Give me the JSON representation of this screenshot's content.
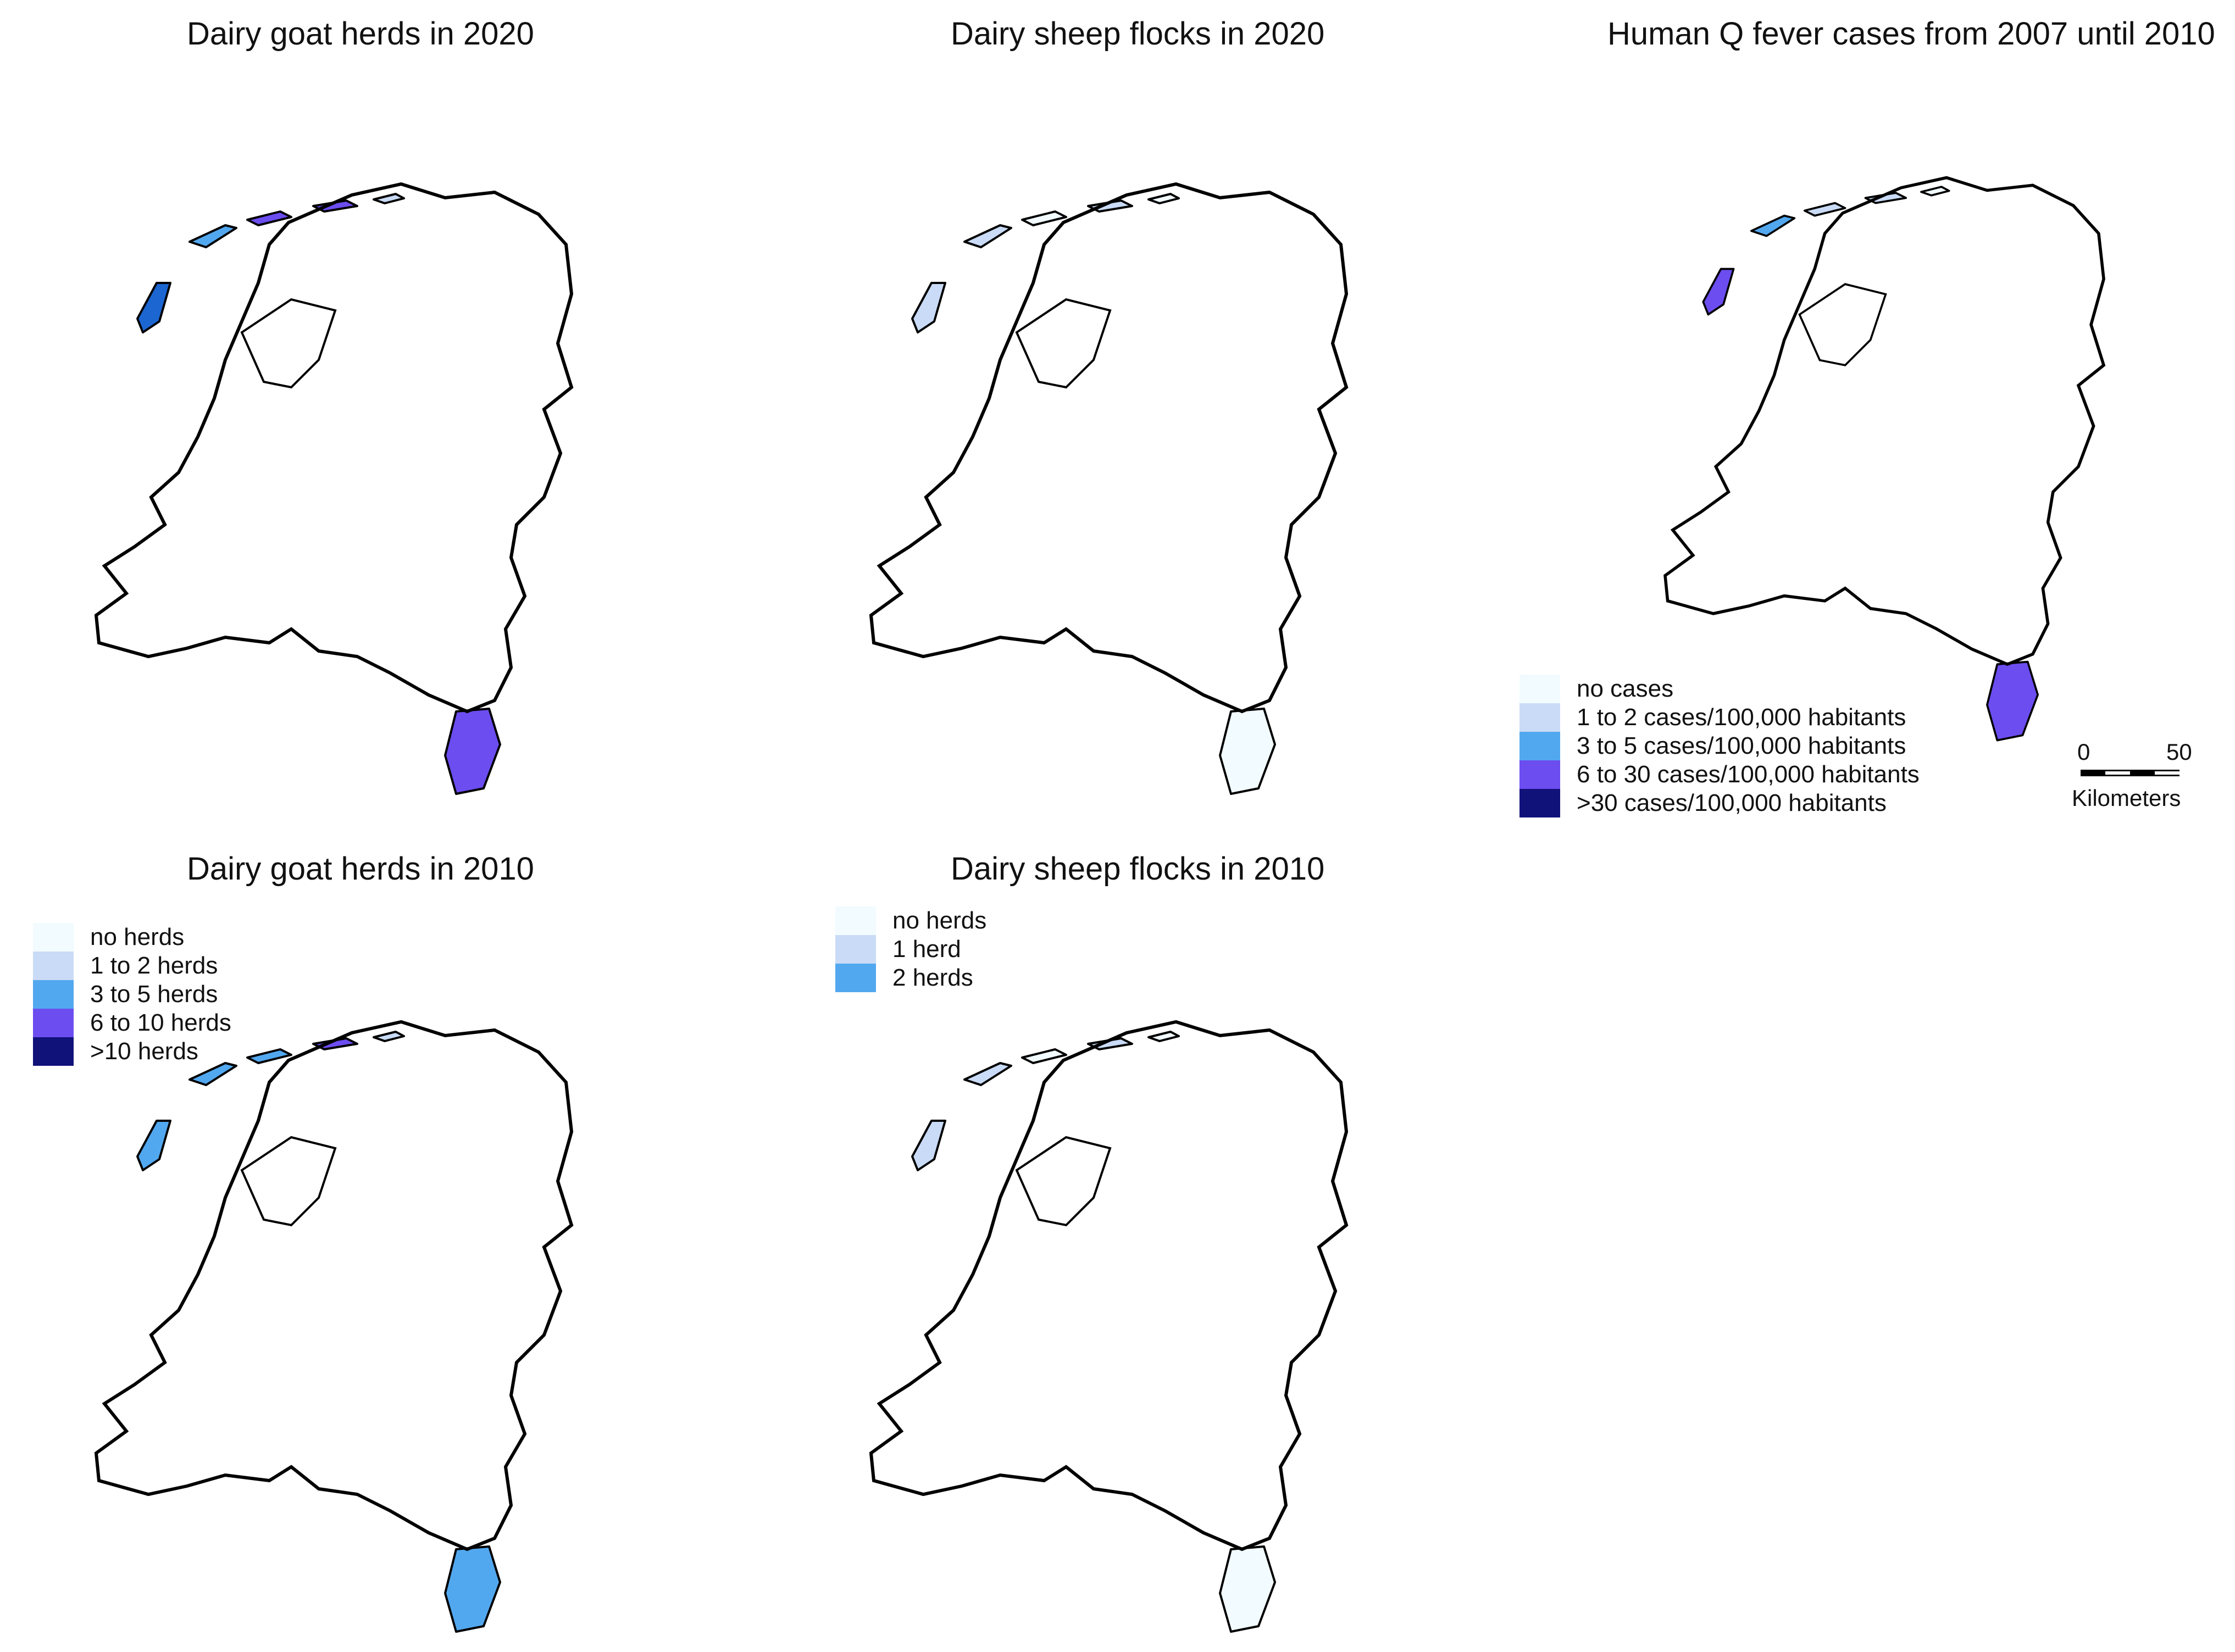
{
  "panels": [
    {
      "title": "Dairy goat herds in 2020",
      "scale": "goat",
      "regions": [
        "#1b66d1",
        "#52a8ef",
        "#6c4df0",
        "#6c4df0",
        "#c9dbf6",
        "#6c4df0",
        "#52a8ef",
        "#6c4df0",
        "#52a8ef",
        "#6c4df0",
        "#52a8ef",
        "#6c4df0",
        "#11117a",
        "#c9dbf6",
        "#1b1b80",
        "#6c4df0",
        "#11117a",
        "#52a8ef",
        "#6c4df0",
        "#52a8ef",
        "#11117a",
        "#52a8ef",
        "#6c4df0",
        "#6c4df0",
        "#6c4df0",
        "#52a8ef",
        "#6c4df0",
        "#c9dbf6",
        "#52a8ef",
        "#6c4df0",
        "#11117a",
        "#6c4df0",
        "#6c4df0",
        "#52a8ef",
        "#52a8ef",
        "#c9dbf6",
        "#11117a",
        "#6c4df0",
        "#6c4df0",
        "#c9dbf6",
        "#11117a",
        "#6c4df0",
        "#6c4df0",
        "#c9dbf6",
        "#52a8ef",
        "#6c4df0",
        "#6c4df0",
        "#c9dbf6",
        "#52a8ef",
        "#c9dbf6",
        "#6c4df0",
        "#52a8ef",
        "#c9dbf6",
        "#52a8ef",
        "#f2fbff",
        "#52a8ef",
        "#6c4df0",
        "#11117a",
        "#52a8ef",
        "#6c4df0",
        "#c9dbf6",
        "#52a8ef",
        "#6c4df0",
        "#c9dbf6",
        "#52a8ef",
        "#c9dbf6",
        "#c9dbf6",
        "#6c4df0",
        "#c9dbf6",
        "#c9dbf6",
        "#52a8ef",
        "#52a8ef",
        "#6c4df0",
        "#c9dbf6",
        "#52a8ef",
        "#6c4df0",
        "#c9dbf6",
        "#6c4df0",
        "#52a8ef",
        "#52a8ef",
        "#52a8ef",
        "#52a8ef",
        "#6c4df0",
        "#c9dbf6",
        "#c9dbf6",
        "#52a8ef",
        "#c9dbf6",
        "#52a8ef",
        "#c9dbf6",
        "#c9dbf6",
        "#c9dbf6",
        "#c9dbf6",
        "#c9dbf6",
        "#52a8ef",
        "#11117a",
        "#52a8ef",
        "#6c4df0",
        "#c9dbf6",
        "#52a8ef",
        "#c9dbf6",
        "#52a8ef",
        "#6c4df0",
        "#c9dbf6",
        "#52a8ef",
        "#6c4df0",
        "#c9dbf6",
        "#52a8ef",
        "#6c4df0",
        "#c9dbf6",
        "#6c4df0",
        "#c9dbf6",
        "#52a8ef",
        "#c9dbf6",
        "#52a8ef",
        "#6c4df0",
        "#c9dbf6",
        "#52a8ef",
        "#c9dbf6",
        "#52a8ef",
        "#c9dbf6",
        "#c9dbf6",
        "#52a8ef",
        "#c9dbf6",
        "#52a8ef",
        "#c9dbf6",
        "#52a8ef",
        "#c9dbf6",
        "#6c4df0",
        "#c9dbf6",
        "#52a8ef",
        "#52a8ef",
        "#c9dbf6",
        "#f2fbff",
        "#52a8ef",
        "#52a8ef",
        "#c9dbf6",
        "#52a8ef",
        "#6c4df0",
        "#52a8ef",
        "#c9dbf6",
        "#52a8ef",
        "#c9dbf6",
        "#52a8ef",
        "#52a8ef",
        "#52a8ef",
        "#c9dbf6",
        "#52a8ef",
        "#c9dbf6"
      ]
    },
    {
      "title": "Dairy sheep flocks in 2020",
      "scale": "sheep",
      "regions": [
        "#c9dbf6",
        "#c9dbf6",
        "#f2fbff",
        "#c9dbf6",
        "#f2fbff",
        "#f2fbff",
        "#f2fbff",
        "#f2fbff",
        "#c9dbf6",
        "#f2fbff",
        "#f2fbff",
        "#f2fbff",
        "#f2fbff",
        "#c9dbf6",
        "#f2fbff",
        "#f2fbff",
        "#f2fbff",
        "#f2fbff",
        "#c9dbf6",
        "#f2fbff",
        "#f2fbff",
        "#f2fbff",
        "#c9dbf6",
        "#f2fbff",
        "#f2fbff",
        "#f2fbff",
        "#c9dbf6",
        "#f2fbff",
        "#f2fbff",
        "#c9dbf6",
        "#f2fbff",
        "#f2fbff",
        "#f2fbff",
        "#f2fbff",
        "#f2fbff",
        "#c9dbf6",
        "#f2fbff",
        "#f2fbff",
        "#f2fbff",
        "#c9dbf6",
        "#f2fbff",
        "#f2fbff",
        "#f2fbff",
        "#c9dbf6",
        "#f2fbff",
        "#f2fbff",
        "#f2fbff",
        "#c9dbf6",
        "#f2fbff",
        "#f2fbff",
        "#f2fbff",
        "#f2fbff",
        "#c9dbf6",
        "#f2fbff",
        "#f2fbff",
        "#f2fbff",
        "#f2fbff",
        "#f2fbff",
        "#f2fbff",
        "#f2fbff",
        "#c9dbf6",
        "#f2fbff",
        "#f2fbff",
        "#f2fbff",
        "#c9dbf6",
        "#f2fbff",
        "#c9dbf6",
        "#f2fbff",
        "#f2fbff",
        "#c9dbf6",
        "#f2fbff",
        "#f2fbff",
        "#f2fbff",
        "#c9dbf6",
        "#f2fbff",
        "#f2fbff",
        "#c9dbf6",
        "#f2fbff",
        "#f2fbff",
        "#f2fbff",
        "#f2fbff",
        "#f2fbff",
        "#52a8ef",
        "#c9dbf6",
        "#c9dbf6",
        "#f2fbff",
        "#c9dbf6",
        "#f2fbff",
        "#c9dbf6",
        "#c9dbf6",
        "#c9dbf6",
        "#f2fbff",
        "#c9dbf6",
        "#52a8ef",
        "#f2fbff",
        "#f2fbff",
        "#c9dbf6",
        "#f2fbff",
        "#f2fbff",
        "#c9dbf6",
        "#f2fbff",
        "#c9dbf6",
        "#c9dbf6",
        "#f2fbff",
        "#f2fbff",
        "#c9dbf6",
        "#f2fbff",
        "#f2fbff",
        "#c9dbf6",
        "#f2fbff",
        "#c9dbf6",
        "#f2fbff",
        "#f2fbff",
        "#c9dbf6",
        "#f2fbff",
        "#c9dbf6",
        "#f2fbff",
        "#f2fbff",
        "#c9dbf6",
        "#c9dbf6",
        "#f2fbff",
        "#c9dbf6",
        "#c9dbf6",
        "#f2fbff",
        "#c9dbf6",
        "#f2fbff",
        "#c9dbf6",
        "#c9dbf6",
        "#f2fbff",
        "#f2fbff",
        "#f2fbff",
        "#c9dbf6",
        "#f2fbff",
        "#f2fbff",
        "#c9dbf6",
        "#f2fbff",
        "#c9dbf6",
        "#f2fbff",
        "#f2fbff",
        "#c9dbf6",
        "#f2fbff",
        "#f2fbff",
        "#f2fbff",
        "#c9dbf6",
        "#f2fbff",
        "#c9dbf6",
        "#f2fbff",
        "#f2fbff"
      ]
    },
    {
      "title": "Human Q fever cases from 2007 until 2010",
      "scale": "qfever",
      "regions": [
        "#6c4df0",
        "#52a8ef",
        "#c9dbf6",
        "#c9dbf6",
        "#f2fbff",
        "#6c4df0",
        "#f2fbff",
        "#52a8ef",
        "#c9dbf6",
        "#52a8ef",
        "#c9dbf6",
        "#52a8ef",
        "#52a8ef",
        "#c9dbf6",
        "#6c4df0",
        "#52a8ef",
        "#c9dbf6",
        "#c9dbf6",
        "#6c4df0",
        "#c9dbf6",
        "#52a8ef",
        "#c9dbf6",
        "#52a8ef",
        "#c9dbf6",
        "#6c4df0",
        "#11117a",
        "#11117a",
        "#c9dbf6",
        "#11117a",
        "#6c4df0",
        "#11117a",
        "#11117a",
        "#6c4df0",
        "#11117a",
        "#c9dbf6",
        "#52a8ef",
        "#11117a",
        "#6c4df0",
        "#11117a",
        "#c9dbf6",
        "#11117a",
        "#11117a",
        "#11117a",
        "#6c4df0",
        "#52a8ef",
        "#6c4df0",
        "#11117a",
        "#c9dbf6",
        "#52a8ef",
        "#6c4df0",
        "#c9dbf6",
        "#c9dbf6",
        "#6c4df0",
        "#52a8ef",
        "#f2fbff",
        "#52a8ef",
        "#c9dbf6",
        "#6c4df0",
        "#52a8ef",
        "#c9dbf6",
        "#f2fbff",
        "#52a8ef",
        "#c9dbf6",
        "#c9dbf6",
        "#52a8ef",
        "#c9dbf6",
        "#52a8ef",
        "#c9dbf6",
        "#f2fbff",
        "#c9dbf6",
        "#52a8ef",
        "#c9dbf6",
        "#c9dbf6",
        "#f2fbff",
        "#52a8ef",
        "#c9dbf6",
        "#c9dbf6",
        "#c9dbf6",
        "#52a8ef",
        "#c9dbf6",
        "#c9dbf6",
        "#c9dbf6",
        "#52a8ef",
        "#c9dbf6",
        "#f2fbff",
        "#52a8ef",
        "#c9dbf6",
        "#c9dbf6",
        "#c9dbf6",
        "#f2fbff",
        "#c9dbf6",
        "#c9dbf6",
        "#c9dbf6",
        "#52a8ef",
        "#6c4df0",
        "#52a8ef",
        "#11117a",
        "#c9dbf6",
        "#52a8ef",
        "#c9dbf6",
        "#6c4df0",
        "#c9dbf6",
        "#c9dbf6",
        "#c9dbf6",
        "#52a8ef",
        "#c9dbf6",
        "#52a8ef",
        "#c9dbf6",
        "#c9dbf6",
        "#52a8ef",
        "#c9dbf6",
        "#c9dbf6",
        "#52a8ef",
        "#c9dbf6",
        "#c9dbf6",
        "#c9dbf6",
        "#52a8ef",
        "#c9dbf6",
        "#c9dbf6",
        "#c9dbf6",
        "#52a8ef",
        "#c9dbf6",
        "#c9dbf6",
        "#52a8ef",
        "#c9dbf6",
        "#c9dbf6",
        "#c9dbf6",
        "#c9dbf6",
        "#c9dbf6",
        "#52a8ef",
        "#c9dbf6",
        "#c9dbf6",
        "#f2fbff",
        "#52a8ef",
        "#c9dbf6",
        "#c9dbf6",
        "#c9dbf6",
        "#52a8ef",
        "#c9dbf6",
        "#c9dbf6",
        "#c9dbf6",
        "#52a8ef",
        "#c9dbf6",
        "#c9dbf6",
        "#c9dbf6",
        "#c9dbf6",
        "#52a8ef",
        "#c9dbf6",
        "#c9dbf6"
      ]
    },
    {
      "title": "Dairy goat herds in 2010",
      "scale": "goat",
      "regions": [
        "#52a8ef",
        "#52a8ef",
        "#52a8ef",
        "#6c4df0",
        "#c9dbf6",
        "#52a8ef",
        "#6c4df0",
        "#52a8ef",
        "#52a8ef",
        "#6c4df0",
        "#52a8ef",
        "#52a8ef",
        "#11117a",
        "#c9dbf6",
        "#52a8ef",
        "#6c4df0",
        "#11117a",
        "#52a8ef",
        "#6c4df0",
        "#52a8ef",
        "#11117a",
        "#52a8ef",
        "#6c4df0",
        "#6c4df0",
        "#6c4df0",
        "#52a8ef",
        "#6c4df0",
        "#c9dbf6",
        "#52a8ef",
        "#6c4df0",
        "#11117a",
        "#6c4df0",
        "#6c4df0",
        "#52a8ef",
        "#52a8ef",
        "#c9dbf6",
        "#11117a",
        "#6c4df0",
        "#6c4df0",
        "#c9dbf6",
        "#11117a",
        "#6c4df0",
        "#6c4df0",
        "#c9dbf6",
        "#52a8ef",
        "#6c4df0",
        "#52a8ef",
        "#c9dbf6",
        "#52a8ef",
        "#c9dbf6",
        "#6c4df0",
        "#52a8ef",
        "#c9dbf6",
        "#52a8ef",
        "#f2fbff",
        "#52a8ef",
        "#6c4df0",
        "#6c4df0",
        "#52a8ef",
        "#6c4df0",
        "#c9dbf6",
        "#52a8ef",
        "#6c4df0",
        "#c9dbf6",
        "#52a8ef",
        "#c9dbf6",
        "#c9dbf6",
        "#6c4df0",
        "#c9dbf6",
        "#c9dbf6",
        "#52a8ef",
        "#52a8ef",
        "#6c4df0",
        "#c9dbf6",
        "#52a8ef",
        "#52a8ef",
        "#c9dbf6",
        "#6c4df0",
        "#52a8ef",
        "#52a8ef",
        "#52a8ef",
        "#52a8ef",
        "#52a8ef",
        "#c9dbf6",
        "#c9dbf6",
        "#52a8ef",
        "#c9dbf6",
        "#52a8ef",
        "#c9dbf6",
        "#c9dbf6",
        "#c9dbf6",
        "#c9dbf6",
        "#c9dbf6",
        "#52a8ef",
        "#11117a",
        "#52a8ef",
        "#6c4df0",
        "#c9dbf6",
        "#52a8ef",
        "#c9dbf6",
        "#52a8ef",
        "#6c4df0",
        "#c9dbf6",
        "#52a8ef",
        "#52a8ef",
        "#c9dbf6",
        "#52a8ef",
        "#6c4df0",
        "#c9dbf6",
        "#52a8ef",
        "#c9dbf6",
        "#52a8ef",
        "#c9dbf6",
        "#52a8ef",
        "#6c4df0",
        "#c9dbf6",
        "#52a8ef",
        "#c9dbf6",
        "#52a8ef",
        "#c9dbf6",
        "#c9dbf6",
        "#52a8ef",
        "#c9dbf6",
        "#52a8ef",
        "#c9dbf6",
        "#52a8ef",
        "#c9dbf6",
        "#6c4df0",
        "#c9dbf6",
        "#52a8ef",
        "#52a8ef",
        "#c9dbf6",
        "#f2fbff",
        "#52a8ef",
        "#52a8ef",
        "#c9dbf6",
        "#52a8ef",
        "#52a8ef",
        "#52a8ef",
        "#c9dbf6",
        "#52a8ef",
        "#c9dbf6",
        "#52a8ef",
        "#52a8ef",
        "#52a8ef",
        "#c9dbf6",
        "#52a8ef",
        "#c9dbf6"
      ]
    },
    {
      "title": "Dairy sheep flocks in 2010",
      "scale": "sheep",
      "regions": [
        "#c9dbf6",
        "#c9dbf6",
        "#f2fbff",
        "#c9dbf6",
        "#f2fbff",
        "#f2fbff",
        "#f2fbff",
        "#c9dbf6",
        "#c9dbf6",
        "#f2fbff",
        "#f2fbff",
        "#f2fbff",
        "#f2fbff",
        "#c9dbf6",
        "#f2fbff",
        "#f2fbff",
        "#f2fbff",
        "#c9dbf6",
        "#c9dbf6",
        "#f2fbff",
        "#f2fbff",
        "#f2fbff",
        "#c9dbf6",
        "#f2fbff",
        "#c9dbf6",
        "#f2fbff",
        "#c9dbf6",
        "#f2fbff",
        "#f2fbff",
        "#c9dbf6",
        "#f2fbff",
        "#f2fbff",
        "#f2fbff",
        "#c9dbf6",
        "#f2fbff",
        "#c9dbf6",
        "#f2fbff",
        "#f2fbff",
        "#f2fbff",
        "#c9dbf6",
        "#f2fbff",
        "#f2fbff",
        "#f2fbff",
        "#c9dbf6",
        "#f2fbff",
        "#c9dbf6",
        "#f2fbff",
        "#c9dbf6",
        "#f2fbff",
        "#f2fbff",
        "#c9dbf6",
        "#f2fbff",
        "#c9dbf6",
        "#c9dbf6",
        "#f2fbff",
        "#f2fbff",
        "#f2fbff",
        "#f2fbff",
        "#f2fbff",
        "#f2fbff",
        "#c9dbf6",
        "#f2fbff",
        "#f2fbff",
        "#f2fbff",
        "#c9dbf6",
        "#f2fbff",
        "#c9dbf6",
        "#f2fbff",
        "#f2fbff",
        "#c9dbf6",
        "#f2fbff",
        "#f2fbff",
        "#f2fbff",
        "#c9dbf6",
        "#f2fbff",
        "#f2fbff",
        "#c9dbf6",
        "#f2fbff",
        "#f2fbff",
        "#c9dbf6",
        "#f2fbff",
        "#f2fbff",
        "#52a8ef",
        "#c9dbf6",
        "#52a8ef",
        "#f2fbff",
        "#c9dbf6",
        "#f2fbff",
        "#c9dbf6",
        "#c9dbf6",
        "#c9dbf6",
        "#f2fbff",
        "#c9dbf6",
        "#52a8ef",
        "#c9dbf6",
        "#f2fbff",
        "#c9dbf6",
        "#f2fbff",
        "#f2fbff",
        "#c9dbf6",
        "#f2fbff",
        "#c9dbf6",
        "#c9dbf6",
        "#f2fbff",
        "#f2fbff",
        "#c9dbf6",
        "#f2fbff",
        "#f2fbff",
        "#c9dbf6",
        "#f2fbff",
        "#c9dbf6",
        "#f2fbff",
        "#f2fbff",
        "#c9dbf6",
        "#f2fbff",
        "#c9dbf6",
        "#f2fbff",
        "#f2fbff",
        "#c9dbf6",
        "#c9dbf6",
        "#f2fbff",
        "#c9dbf6",
        "#c9dbf6",
        "#f2fbff",
        "#c9dbf6",
        "#f2fbff",
        "#c9dbf6",
        "#c9dbf6",
        "#f2fbff",
        "#f2fbff",
        "#f2fbff",
        "#c9dbf6",
        "#f2fbff",
        "#f2fbff",
        "#c9dbf6",
        "#f2fbff",
        "#c9dbf6",
        "#f2fbff",
        "#f2fbff",
        "#c9dbf6",
        "#f2fbff",
        "#f2fbff",
        "#f2fbff",
        "#c9dbf6",
        "#f2fbff",
        "#c9dbf6",
        "#f2fbff",
        "#f2fbff"
      ]
    }
  ],
  "legends": {
    "goat": {
      "items": [
        {
          "label": "no herds",
          "color": "#f2fbff"
        },
        {
          "label": "1 to 2 herds",
          "color": "#c9dbf6"
        },
        {
          "label": "3 to 5 herds",
          "color": "#52a8ef"
        },
        {
          "label": "6 to 10 herds",
          "color": "#6c4df0"
        },
        {
          "label": ">10 herds",
          "color": "#11117a"
        }
      ]
    },
    "sheep": {
      "items": [
        {
          "label": "no herds",
          "color": "#f2fbff"
        },
        {
          "label": "1 herd",
          "color": "#c9dbf6"
        },
        {
          "label": "2 herds",
          "color": "#52a8ef"
        }
      ]
    },
    "qfever": {
      "items": [
        {
          "label": "no cases",
          "color": "#f2fbff"
        },
        {
          "label": "1 to 2 cases/100,000 habitants",
          "color": "#c9dbf6"
        },
        {
          "label": "3 to 5 cases/100,000 habitants",
          "color": "#52a8ef"
        },
        {
          "label": "6 to 30 cases/100,000 habitants",
          "color": "#6c4df0"
        },
        {
          "label": ">30 cases/100,000 habitants",
          "color": "#11117a"
        }
      ]
    }
  },
  "scalebar": {
    "min_label": "0",
    "max_label": "50",
    "unit": "Kilometers"
  },
  "colors": {
    "border": "#000000",
    "water": "#ffffff"
  }
}
